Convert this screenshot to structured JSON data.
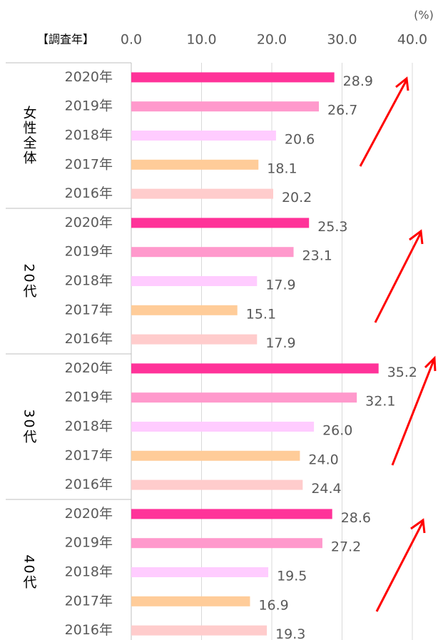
{
  "chart_data": {
    "type": "grouped-hbar",
    "unit": "(%)",
    "category_header": "【調査年】",
    "categories": [
      "女性全体",
      "20代",
      "30代",
      "40代"
    ],
    "series": [
      {
        "name": "2020年",
        "color": "#ff3399",
        "values": [
          28.9,
          25.3,
          35.2,
          28.6
        ],
        "value_labels": [
          "28.9",
          "25.3",
          "35.2",
          "28.6"
        ]
      },
      {
        "name": "2019年",
        "color": "#ff99cc",
        "values": [
          26.7,
          23.1,
          32.1,
          27.2
        ],
        "value_labels": [
          "26.7",
          "23.1",
          "32.1",
          "27.2"
        ]
      },
      {
        "name": "2018年",
        "color": "#ffccff",
        "values": [
          20.6,
          17.9,
          26.0,
          19.5
        ],
        "value_labels": [
          "20.6",
          "17.9",
          "26.0",
          "19.5"
        ]
      },
      {
        "name": "2017年",
        "color": "#ffcc99",
        "values": [
          18.1,
          15.1,
          24.0,
          16.9
        ],
        "value_labels": [
          "18.1",
          "15.1",
          "24.0",
          "16.9"
        ]
      },
      {
        "name": "2016年",
        "color": "#ffcccc",
        "values": [
          20.2,
          17.9,
          24.4,
          19.3
        ],
        "value_labels": [
          "20.2",
          "17.9",
          "24.4",
          "19.3"
        ]
      }
    ],
    "xlim": [
      0,
      40
    ],
    "xticks": [
      {
        "value": 0,
        "label": "0.0"
      },
      {
        "value": 10,
        "label": "10.0"
      },
      {
        "value": 20,
        "label": "20.0"
      },
      {
        "value": 30,
        "label": "30.0"
      },
      {
        "value": 40,
        "label": "40.0"
      }
    ],
    "grid": true
  }
}
